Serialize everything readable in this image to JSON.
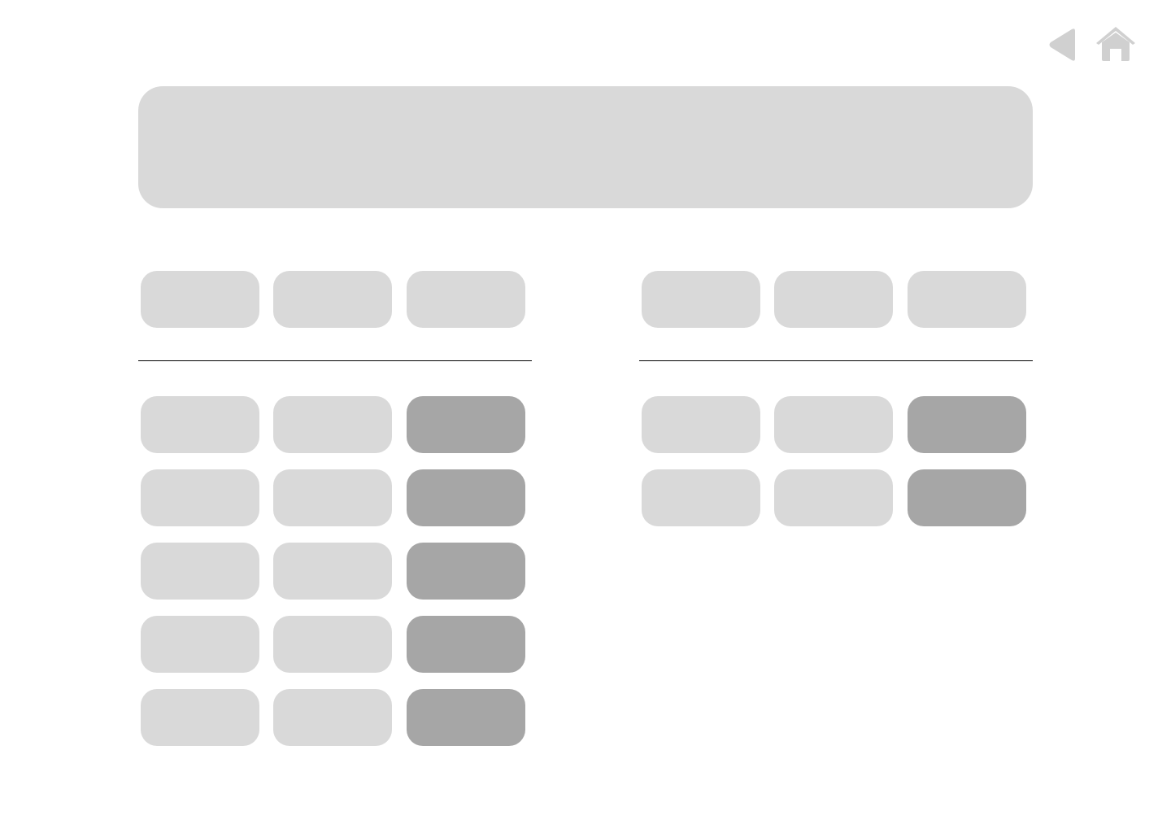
{
  "colors": {
    "background": "#ffffff",
    "banner": "#d9d9d9",
    "button_light": "#d9d9d9",
    "button_dark": "#a6a6a6",
    "icon": "#d0d0d0",
    "divider": "#000000"
  },
  "icons": {
    "back": "back-arrow-icon",
    "home": "home-icon"
  },
  "panels": [
    {
      "name": "left",
      "header_columns": 3,
      "rows": 5,
      "dark_column": 3
    },
    {
      "name": "right",
      "header_columns": 3,
      "rows": 2,
      "dark_column": 3
    }
  ]
}
